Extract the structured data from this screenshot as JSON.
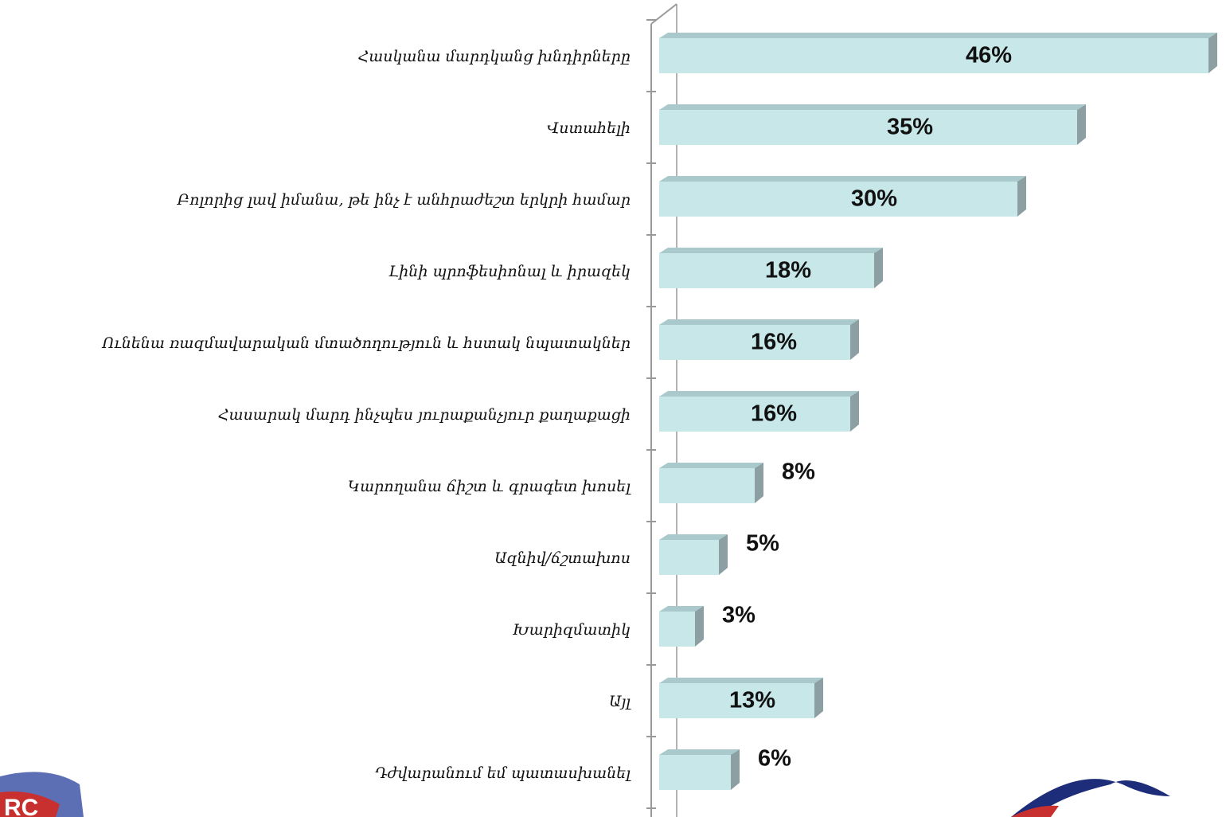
{
  "chart_data": {
    "type": "bar",
    "orientation": "horizontal",
    "color": "#c7e7e9",
    "categories": [
      "Հասկանա մարդկանց խնդիրները",
      "Վստահելի",
      "Բոլորից լավ իմանա, թե ինչ է անհրաժեշտ երկրի համար",
      "Լինի պրոֆեսիոնալ և իրազեկ",
      "Ունենա ռազմավարական մտածողություն և հստակ նպատակներ",
      "Հասարակ մարդ ինչպես յուրաքանչյուր քաղաքացի",
      "Կարողանա ճիշտ և գրագետ խոսել",
      "Ազնիվ/ճշտախոս",
      "Խարիզմատիկ",
      "Այլ",
      "Դժվարանում եմ պատասխանել"
    ],
    "values": [
      46,
      35,
      30,
      18,
      16,
      16,
      8,
      5,
      3,
      13,
      6
    ],
    "value_labels": [
      "46%",
      "35%",
      "30%",
      "18%",
      "16%",
      "16%",
      "8%",
      "5%",
      "3%",
      "13%",
      "6%"
    ]
  }
}
